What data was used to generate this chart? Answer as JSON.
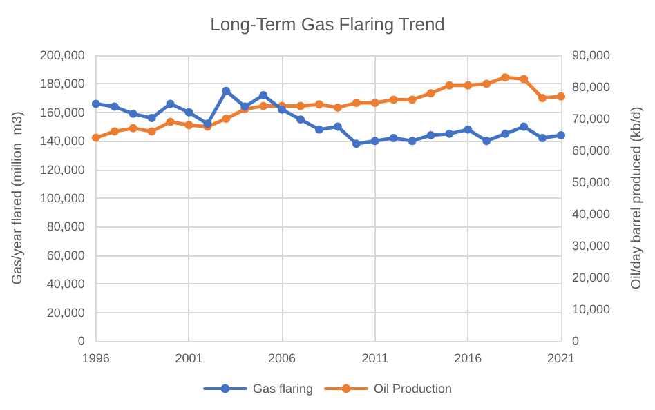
{
  "chart_data": {
    "type": "line",
    "title": "Long-Term Gas Flaring Trend",
    "ylabel": "Gas/year flared (million  m3)",
    "y2label": "Oil/day barrel produced (kb/d)",
    "x": [
      1996,
      1997,
      1998,
      1999,
      2000,
      2001,
      2002,
      2003,
      2004,
      2005,
      2006,
      2007,
      2008,
      2009,
      2010,
      2011,
      2012,
      2013,
      2014,
      2015,
      2016,
      2017,
      2018,
      2019,
      2020,
      2021
    ],
    "series": [
      {
        "name": "Gas flaring",
        "color": "#4472c4",
        "values": [
          166000,
          164000,
          159000,
          156000,
          166000,
          160000,
          152000,
          175000,
          164000,
          172000,
          162000,
          155000,
          148000,
          150000,
          138000,
          140000,
          142000,
          140000,
          144000,
          145000,
          148000,
          140000,
          145000,
          150000,
          142000,
          144000
        ]
      },
      {
        "name": "Oil Production",
        "color": "#ed7d31",
        "axis": "y2",
        "values": [
          64000,
          66000,
          67000,
          66000,
          69000,
          68000,
          67500,
          70000,
          73000,
          74000,
          74000,
          74000,
          74500,
          73500,
          75000,
          75000,
          76000,
          76000,
          78000,
          80500,
          80500,
          81000,
          83000,
          82500,
          76500,
          77000
        ]
      }
    ],
    "xlim": [
      1996,
      2021
    ],
    "xticks": [
      1996,
      2001,
      2006,
      2011,
      2016,
      2021
    ],
    "ylim": [
      0,
      200000
    ],
    "yticks": [
      0,
      {
        "value": 20000,
        "label": "20,000"
      },
      {
        "value": 40000,
        "label": "40,000"
      },
      {
        "value": 60000,
        "label": "60,000"
      },
      {
        "value": 80000,
        "label": "80,000"
      },
      {
        "value": 100000,
        "label": "100,000"
      },
      {
        "value": 120000,
        "label": "120,000"
      },
      {
        "value": 140000,
        "label": "140,000"
      },
      {
        "value": 160000,
        "label": "160,000"
      },
      {
        "value": 180000,
        "label": "180,000"
      },
      {
        "value": 200000,
        "label": "200,000"
      }
    ],
    "y2lim": [
      0,
      90000
    ],
    "y2ticks": [
      0,
      {
        "value": 10000,
        "label": "10,000"
      },
      {
        "value": 20000,
        "label": "20,000"
      },
      {
        "value": 30000,
        "label": "30,000"
      },
      {
        "value": 40000,
        "label": "40,000"
      },
      {
        "value": 50000,
        "label": "50,000"
      },
      {
        "value": 60000,
        "label": "60,000"
      },
      {
        "value": 70000,
        "label": "70,000"
      },
      {
        "value": 80000,
        "label": "80,000"
      },
      {
        "value": 90000,
        "label": "90,000"
      }
    ],
    "grid": true,
    "legend": "bottom",
    "marker": "circle",
    "line_style": "solid"
  }
}
